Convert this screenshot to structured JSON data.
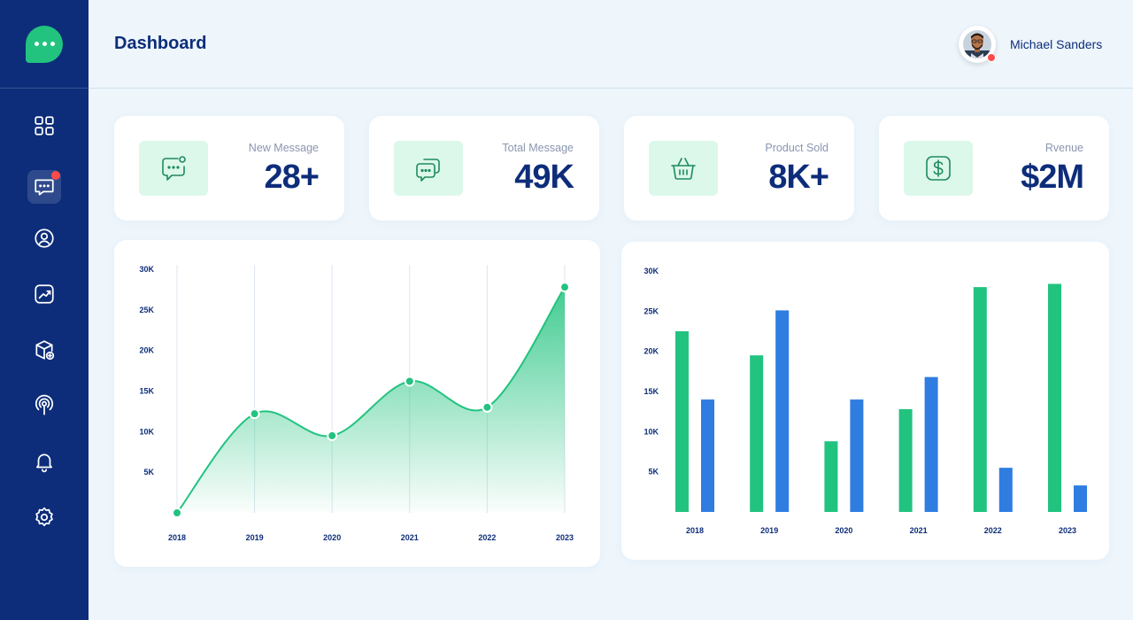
{
  "header": {
    "title": "Dashboard",
    "user": {
      "name": "Michael Sanders"
    }
  },
  "sidebar": {
    "logo_icon": "chat-bubble-logo-icon",
    "items": [
      {
        "icon": "grid-icon",
        "active": false
      },
      {
        "icon": "message-icon",
        "active": true,
        "badge": true
      },
      {
        "icon": "user-icon",
        "active": false
      },
      {
        "icon": "analytics-icon",
        "active": false
      },
      {
        "icon": "box-add-icon",
        "active": false
      },
      {
        "icon": "location-icon",
        "active": false
      },
      {
        "icon": "bell-icon",
        "active": false
      },
      {
        "icon": "settings-icon",
        "active": false
      }
    ]
  },
  "stats": [
    {
      "label": "New Message",
      "value": "28+",
      "icon": "message-notification-icon"
    },
    {
      "label": "Total Message",
      "value": "49K",
      "icon": "messages-icon"
    },
    {
      "label": "Product Sold",
      "value": "8K+",
      "icon": "basket-icon"
    },
    {
      "label": "Rvenue",
      "value": "$2M",
      "icon": "dollar-icon"
    }
  ],
  "colors": {
    "sidebar": "#0d2d7a",
    "accent_green": "#22c37f",
    "accent_blue": "#2f7de1",
    "badge_red": "#ff4a4a"
  },
  "chart_data": [
    {
      "type": "area",
      "categories": [
        "2018",
        "2019",
        "2020",
        "2021",
        "2022",
        "2023"
      ],
      "series": [
        {
          "values": [
            0,
            12200,
            9500,
            16200,
            13000,
            27800
          ],
          "color": "#22c37f"
        }
      ],
      "ylim": [
        0,
        30000
      ],
      "yticks": [
        "5K",
        "10K",
        "15K",
        "20K",
        "25K",
        "30K"
      ],
      "grid": "vertical"
    },
    {
      "type": "bar",
      "categories": [
        "2018",
        "2019",
        "2020",
        "2021",
        "2022",
        "2023"
      ],
      "series": [
        {
          "values": [
            22500,
            19500,
            8800,
            12800,
            28000,
            28400
          ],
          "color": "#22c37f"
        },
        {
          "values": [
            14000,
            25100,
            14000,
            16800,
            5500,
            3300
          ],
          "color": "#2f7de1"
        }
      ],
      "ylim": [
        0,
        30000
      ],
      "yticks": [
        "5K",
        "10K",
        "15K",
        "20K",
        "25K",
        "30K"
      ]
    }
  ]
}
